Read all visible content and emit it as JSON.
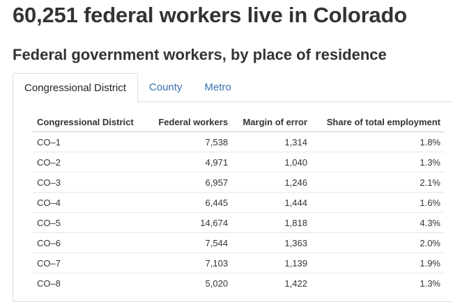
{
  "page": {
    "title": "60,251 federal workers live in Colorado",
    "section_title": "Federal government workers, by place of residence"
  },
  "tabs": [
    {
      "label": "Congressional District",
      "active": true
    },
    {
      "label": "County",
      "active": false
    },
    {
      "label": "Metro",
      "active": false
    }
  ],
  "table": {
    "headers": [
      "Congressional District",
      "Federal workers",
      "Margin of error",
      "Share of total employment"
    ],
    "rows": [
      {
        "district": "CO–1",
        "workers": "7,538",
        "moe": "1,314",
        "share": "1.8%"
      },
      {
        "district": "CO–2",
        "workers": "4,971",
        "moe": "1,040",
        "share": "1.3%"
      },
      {
        "district": "CO–3",
        "workers": "6,957",
        "moe": "1,246",
        "share": "2.1%"
      },
      {
        "district": "CO–4",
        "workers": "6,445",
        "moe": "1,444",
        "share": "1.6%"
      },
      {
        "district": "CO–5",
        "workers": "14,674",
        "moe": "1,818",
        "share": "4.3%"
      },
      {
        "district": "CO–6",
        "workers": "7,544",
        "moe": "1,363",
        "share": "2.0%"
      },
      {
        "district": "CO–7",
        "workers": "7,103",
        "moe": "1,139",
        "share": "1.9%"
      },
      {
        "district": "CO–8",
        "workers": "5,020",
        "moe": "1,422",
        "share": "1.3%"
      }
    ]
  },
  "colors": {
    "text": "#333333",
    "link": "#3a6fb0",
    "border": "#dddddd"
  }
}
